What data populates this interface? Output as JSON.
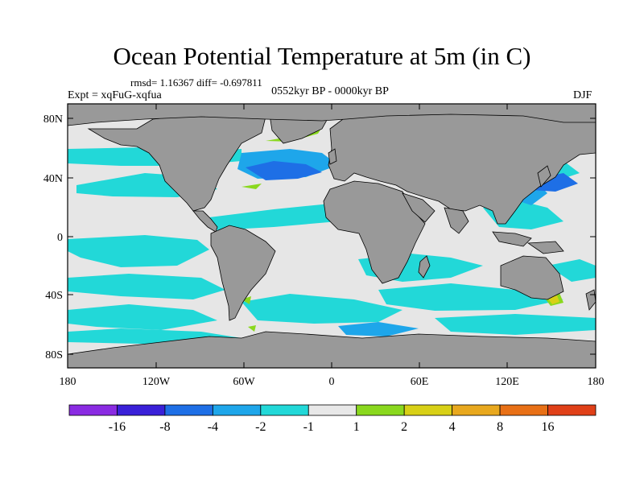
{
  "title": "Ocean Potential Temperature at 5m (in C)",
  "stats_line": "rmsd= 1.16367 diff= -0.697811",
  "experiment": "Expt = xqFuG-xqfua",
  "period": "0552kyr BP - 0000kyr BP",
  "season": "DJF",
  "lat_axis": {
    "ticks": [
      "80N",
      "40N",
      "0",
      "40S",
      "80S"
    ],
    "values": [
      80,
      40,
      0,
      -40,
      -80
    ],
    "range": [
      -90,
      90
    ]
  },
  "lon_axis": {
    "ticks": [
      "180",
      "120W",
      "60W",
      "0",
      "60E",
      "120E",
      "180"
    ],
    "values": [
      -180,
      -120,
      -60,
      0,
      60,
      120,
      180
    ],
    "range": [
      -180,
      180
    ]
  },
  "colorbar": {
    "colors": [
      "#8a2be2",
      "#3a20d8",
      "#1e6fe6",
      "#1ea6ea",
      "#22d8d8",
      "#e8e8e8",
      "#8ad81e",
      "#d8d016",
      "#e8a81e",
      "#e87016",
      "#e04018"
    ],
    "labels": [
      "-16",
      "-8",
      "-4",
      "-2",
      "-1",
      "1",
      "2",
      "4",
      "8",
      "16"
    ]
  },
  "colors": {
    "land": "#999999",
    "neutral_ocean": "#e6e6e6",
    "cyan": "#22d8d8",
    "light_blue": "#1ea6ea",
    "blue": "#1e6fe6",
    "green": "#8ad81e",
    "yellow": "#d8d016"
  }
}
